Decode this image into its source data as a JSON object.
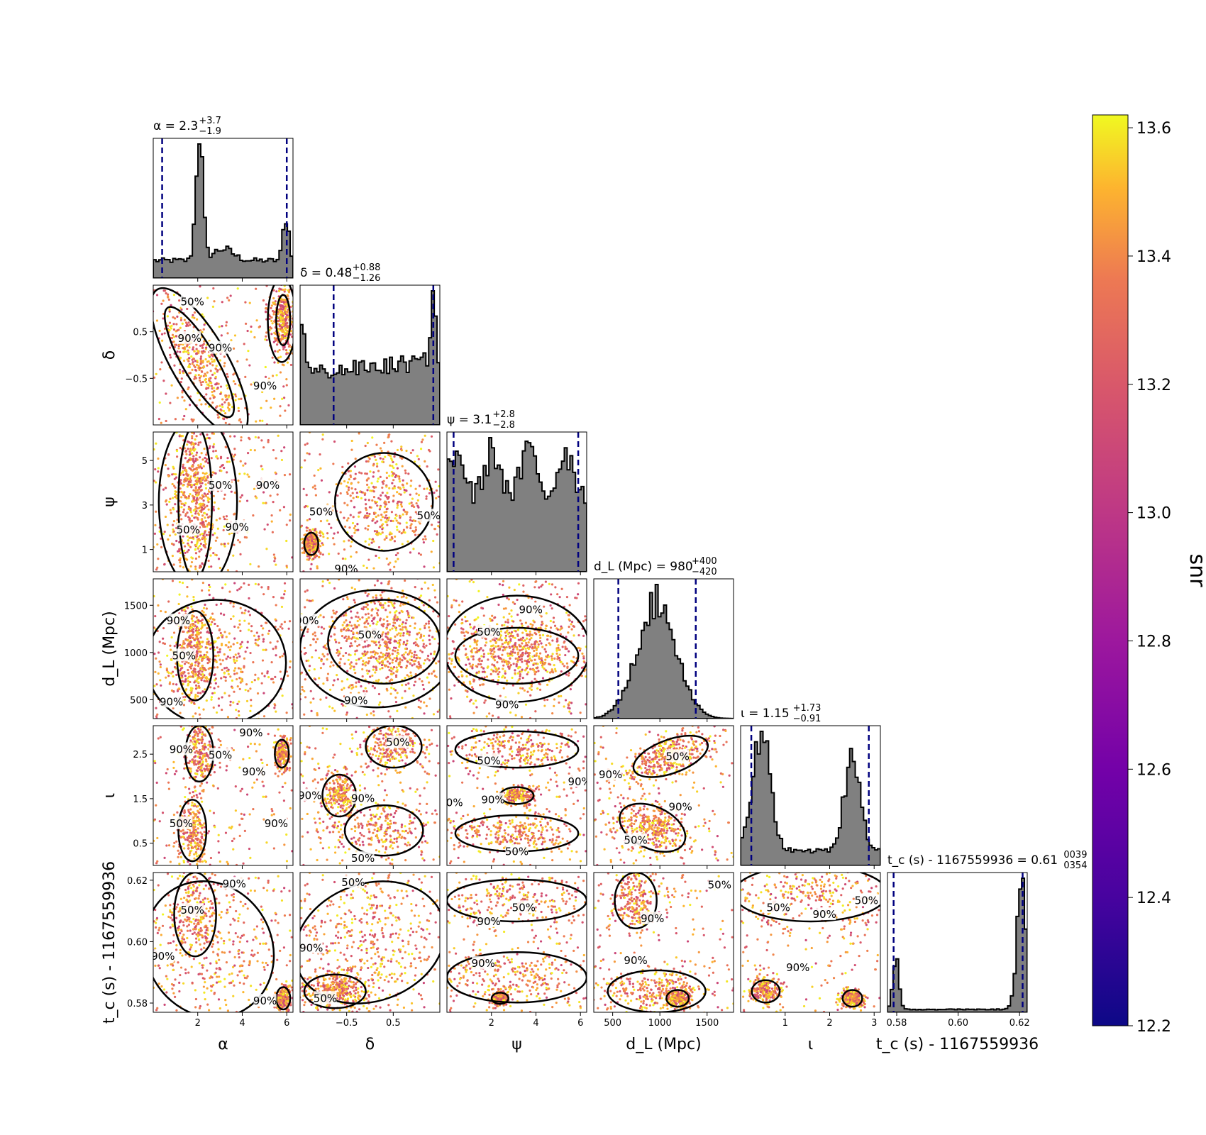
{
  "chart_data": {
    "type": "corner",
    "colorbar": {
      "label": "snr",
      "range": [
        12.2,
        13.62
      ],
      "ticks": [
        "12.2",
        "12.4",
        "12.6",
        "12.8",
        "13.0",
        "13.2",
        "13.4",
        "13.6"
      ],
      "colormap": "plasma"
    },
    "contour_levels": [
      "50%",
      "90%"
    ],
    "colors": {
      "hist_fill": "#808080",
      "hist_edge": "#000000",
      "quantile_line": "#00007f",
      "contour": "#000000"
    },
    "params": [
      {
        "key": "alpha",
        "axis_label": "α",
        "title": "α = 2.3",
        "sup": "+3.7",
        "sub": "−1.9",
        "range": [
          0.0,
          6.28
        ],
        "ticks": [
          2,
          4,
          6
        ],
        "tick_labels": [
          "2",
          "4",
          "6"
        ],
        "median": 2.3,
        "q_low": 0.4,
        "q_high": 6.0
      },
      {
        "key": "delta",
        "axis_label": "δ",
        "title": "δ = 0.48",
        "sup": "+0.88",
        "sub": "−1.26",
        "range": [
          -1.5,
          1.5
        ],
        "ticks": [
          -0.5,
          0.5
        ],
        "tick_labels": [
          "−0.5",
          "0.5"
        ],
        "median": 0.48,
        "q_low": -0.78,
        "q_high": 1.36
      },
      {
        "key": "psi",
        "axis_label": "ψ",
        "title": "ψ = 3.1",
        "sup": "+2.8",
        "sub": "−2.8",
        "range": [
          0.0,
          6.28
        ],
        "ticks": [
          1,
          3,
          5
        ],
        "tick_labels": [
          "1",
          "3",
          "5"
        ],
        "ticks_x": [
          2,
          4,
          6
        ],
        "tick_labels_x": [
          "2",
          "4",
          "6"
        ],
        "median": 3.1,
        "q_low": 0.3,
        "q_high": 5.9
      },
      {
        "key": "dL",
        "axis_label": "d_L (Mpc)",
        "title": "d_L (Mpc) = 980",
        "sup": "+400",
        "sub": "−420",
        "range": [
          300,
          1780
        ],
        "ticks": [
          500,
          1000,
          1500
        ],
        "tick_labels": [
          "500",
          "1000",
          "1500"
        ],
        "median": 980,
        "q_low": 560,
        "q_high": 1380
      },
      {
        "key": "iota",
        "axis_label": "ι",
        "title": "ι = 1.15",
        "sup": "+1.73",
        "sub": "−0.91",
        "range": [
          0.0,
          3.14
        ],
        "ticks": [
          0.5,
          1.5,
          2.5
        ],
        "tick_labels": [
          "0.5",
          "1.5",
          "2.5"
        ],
        "ticks_x": [
          1,
          2,
          3
        ],
        "tick_labels_x": [
          "1",
          "2",
          "3"
        ],
        "median": 1.15,
        "q_low": 0.24,
        "q_high": 2.88
      },
      {
        "key": "tc",
        "axis_label": "t_c (s) - 1167559936",
        "title": "t_c (s) - 1167559936 = 0.61",
        "sup": "0039",
        "sub": "0354",
        "range": [
          0.577,
          0.6225
        ],
        "ticks": [
          0.58,
          0.6,
          0.62
        ],
        "tick_labels": [
          "0.58",
          "0.60",
          "0.62"
        ],
        "ticks_x": [
          0.58,
          0.6,
          0.62
        ],
        "tick_labels_x": [
          "0.58",
          "0.60",
          "0.62"
        ],
        "median": 0.615,
        "q_low": 0.579,
        "q_high": 0.621
      }
    ]
  }
}
